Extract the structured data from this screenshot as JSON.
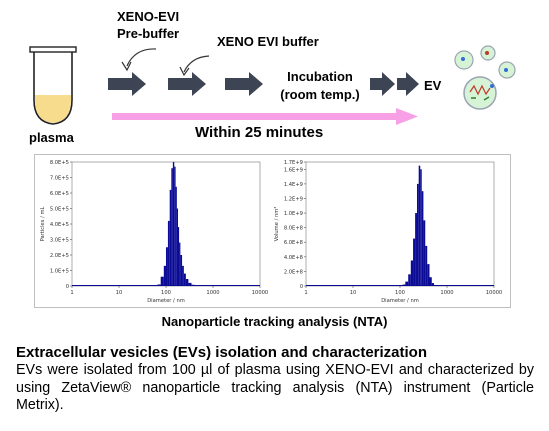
{
  "workflow": {
    "plasma_label": "plasma",
    "pre_buffer_label_line1": "XENO-EVI",
    "pre_buffer_label_line2": "Pre-buffer",
    "buffer_label": "XENO EVI buffer",
    "incubation_line1": "Incubation",
    "incubation_line2": "(room temp.)",
    "ev_label": "EV",
    "timeline_label": "Within 25 minutes",
    "colors": {
      "arrow": "#3d4453",
      "timeline": "#f7a0e6",
      "plasma": "#f6dc8c"
    }
  },
  "chart_data": [
    {
      "type": "bar",
      "title": "",
      "xlabel": "Diameter / nm",
      "ylabel": "Particles / mL",
      "xscale": "log",
      "xlim": [
        1,
        10000
      ],
      "xticks": [
        "1",
        "10",
        "100",
        "1000",
        "10000"
      ],
      "ylim": [
        0,
        800000.0
      ],
      "yticks": [
        "0",
        "1.0E+5",
        "2.0E+5",
        "3.0E+5",
        "4.0E+5",
        "5.0E+5",
        "6.0E+5",
        "7.0E+5",
        "8.0E+5"
      ],
      "color": "#0b0b96",
      "x": [
        70,
        85,
        95,
        105,
        115,
        125,
        135,
        145,
        155,
        165,
        175,
        185,
        195,
        210,
        230,
        250,
        280,
        320,
        380
      ],
      "values": [
        10000,
        60000,
        130000,
        250000,
        420000,
        620000,
        760000,
        800000,
        770000,
        640000,
        500000,
        380000,
        280000,
        200000,
        130000,
        80000,
        45000,
        20000,
        8000
      ]
    },
    {
      "type": "bar",
      "title": "",
      "xlabel": "Diameter / nm",
      "ylabel": "Volume / nm³",
      "xscale": "log",
      "xlim": [
        1,
        10000
      ],
      "xticks": [
        "1",
        "10",
        "100",
        "1000",
        "10000"
      ],
      "ylim": [
        0,
        1700000000.0
      ],
      "yticks": [
        "0",
        "2.0E+8",
        "4.0E+8",
        "6.0E+8",
        "8.0E+8",
        "1.0E+9",
        "1.2E+9",
        "1.4E+9",
        "1.6E+9",
        "1.7E+9"
      ],
      "color": "#0b0b96",
      "x": [
        120,
        140,
        160,
        180,
        200,
        220,
        240,
        260,
        280,
        300,
        330,
        360,
        400,
        450,
        500
      ],
      "values": [
        20000000,
        60000000,
        160000000,
        350000000,
        650000000,
        1000000000,
        1400000000,
        1650000000,
        1600000000,
        1300000000,
        900000000,
        550000000,
        300000000,
        120000000,
        40000000
      ]
    }
  ],
  "nta_caption": "Nanoparticle tracking analysis (NTA)",
  "description": {
    "title": "Extracellular vesicles (EVs) isolation and characterization",
    "body": "EVs were isolated from 100 µl of plasma using XENO-EVI and characterized by using ZetaView® nanoparticle tracking analysis (NTA) instrument (Particle Metrix)."
  }
}
